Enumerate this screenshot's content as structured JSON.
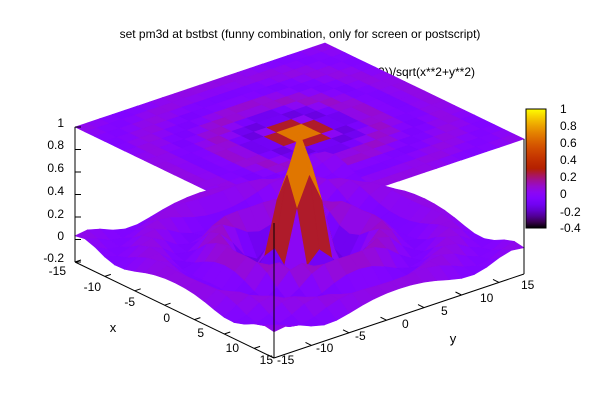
{
  "chart_data": {
    "type": "surface3d-pm3d",
    "title": "set pm3d at bstbst (funny combination, only for screen or postscript)",
    "function_label": "sin(sqrt(x**2+y**2))/sqrt(x**2+y**2)",
    "xlabel": "x",
    "ylabel": "y",
    "xlim": [
      -15,
      15
    ],
    "ylim": [
      -15,
      15
    ],
    "zlim": [
      -0.2,
      1
    ],
    "x_ticks": [
      "-15",
      "-10",
      "-5",
      "0",
      "5",
      "10",
      "15"
    ],
    "y_ticks": [
      "-15",
      "-10",
      "-5",
      "0",
      "5",
      "10",
      "15"
    ],
    "z_ticks": [
      "-0.2",
      "0",
      "0.2",
      "0.4",
      "0.6",
      "0.8",
      "1"
    ],
    "colorbar": {
      "range": [
        -0.4,
        1
      ],
      "ticks": [
        "-0.4",
        "-0.2",
        "0",
        "0.2",
        "0.4",
        "0.6",
        "0.8",
        "1"
      ],
      "palette": "gnuplot default (black-blue-magenta-orange-yellow)"
    },
    "surface_values": {
      "description": "z = sin(r)/r sampled on a 21x21 grid from -15 to 15; bottom surface plus flat color map at top",
      "grid_n": 21
    }
  }
}
